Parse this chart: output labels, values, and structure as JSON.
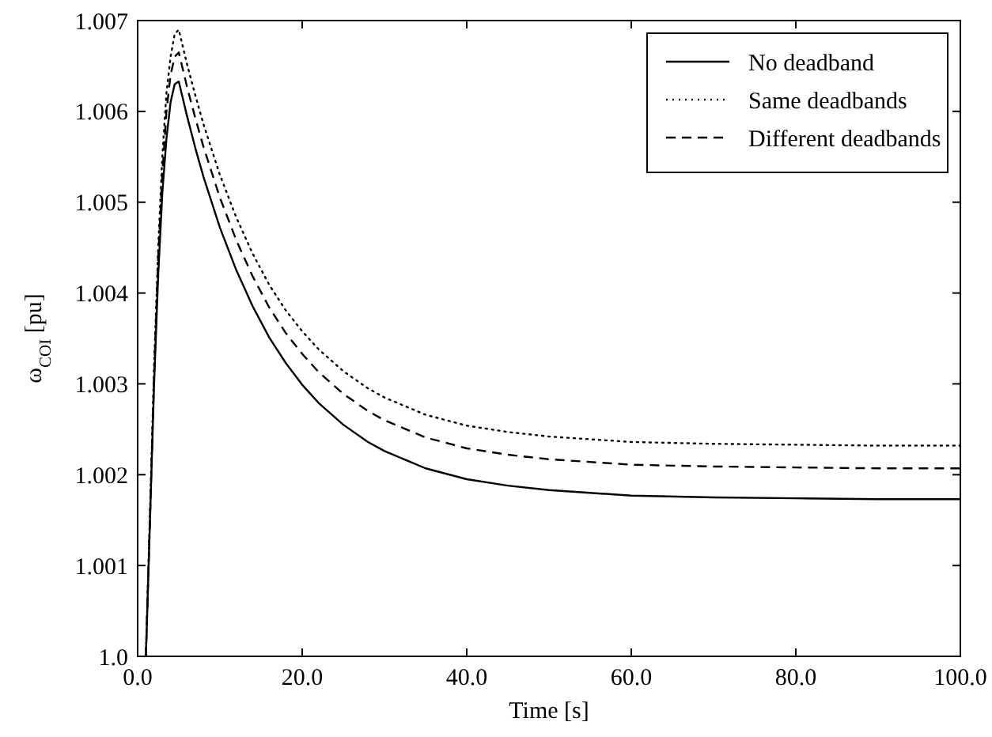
{
  "chart_data": {
    "type": "line",
    "xlabel": "Time [s]",
    "ylabel": "ω$_{COI}$ [pu]",
    "xlim": [
      0,
      100
    ],
    "ylim": [
      1.0,
      1.007
    ],
    "xticks": [
      {
        "value": 0,
        "label": "0.0"
      },
      {
        "value": 20,
        "label": "20.0"
      },
      {
        "value": 40,
        "label": "40.0"
      },
      {
        "value": 60,
        "label": "60.0"
      },
      {
        "value": 80,
        "label": "80.0"
      },
      {
        "value": 100,
        "label": "100.0"
      }
    ],
    "yticks": [
      {
        "value": 1.0,
        "label": "1.0"
      },
      1.001,
      1.002,
      1.003,
      1.004,
      1.005,
      1.006,
      1.007
    ],
    "x": [
      1,
      1.5,
      2,
      2.5,
      3,
      3.5,
      4,
      4.5,
      5,
      6,
      7,
      8,
      10,
      12,
      14,
      16,
      18,
      20,
      22,
      25,
      28,
      30,
      35,
      40,
      45,
      50,
      60,
      70,
      80,
      90,
      100
    ],
    "legend": "top right",
    "grid": false,
    "series": [
      {
        "name": "No deadband",
        "color": "#000000",
        "line_style": "solid",
        "values": [
          1.0,
          1.0015,
          1.003,
          1.0042,
          1.0051,
          1.0057,
          1.0061,
          1.0063,
          1.00633,
          1.00595,
          1.0056,
          1.00528,
          1.00472,
          1.00425,
          1.00385,
          1.00351,
          1.00323,
          1.00299,
          1.00279,
          1.00255,
          1.00236,
          1.00226,
          1.00207,
          1.00195,
          1.00188,
          1.00183,
          1.00177,
          1.00175,
          1.00174,
          1.00173,
          1.00173
        ]
      },
      {
        "name": "Same deadbands",
        "color": "#000000",
        "line_style": "dotted",
        "values": [
          1.0,
          1.0016,
          1.0032,
          1.0045,
          1.0055,
          1.0062,
          1.0066,
          1.00685,
          1.0069,
          1.00652,
          1.00618,
          1.00586,
          1.0053,
          1.00483,
          1.00443,
          1.00409,
          1.00381,
          1.00358,
          1.00338,
          1.00314,
          1.00295,
          1.00285,
          1.00266,
          1.00254,
          1.00247,
          1.00242,
          1.00236,
          1.00234,
          1.00233,
          1.00232,
          1.00232
        ]
      },
      {
        "name": "Different deadbands",
        "color": "#000000",
        "line_style": "dashed",
        "values": [
          1.0,
          1.0015,
          1.0031,
          1.0044,
          1.0053,
          1.006,
          1.0064,
          1.0066,
          1.00665,
          1.00627,
          1.00593,
          1.00561,
          1.00505,
          1.00458,
          1.00418,
          1.00384,
          1.00356,
          1.00333,
          1.00313,
          1.00289,
          1.0027,
          1.0026,
          1.00241,
          1.00229,
          1.00222,
          1.00217,
          1.00211,
          1.00209,
          1.00208,
          1.00207,
          1.00207
        ]
      }
    ]
  }
}
